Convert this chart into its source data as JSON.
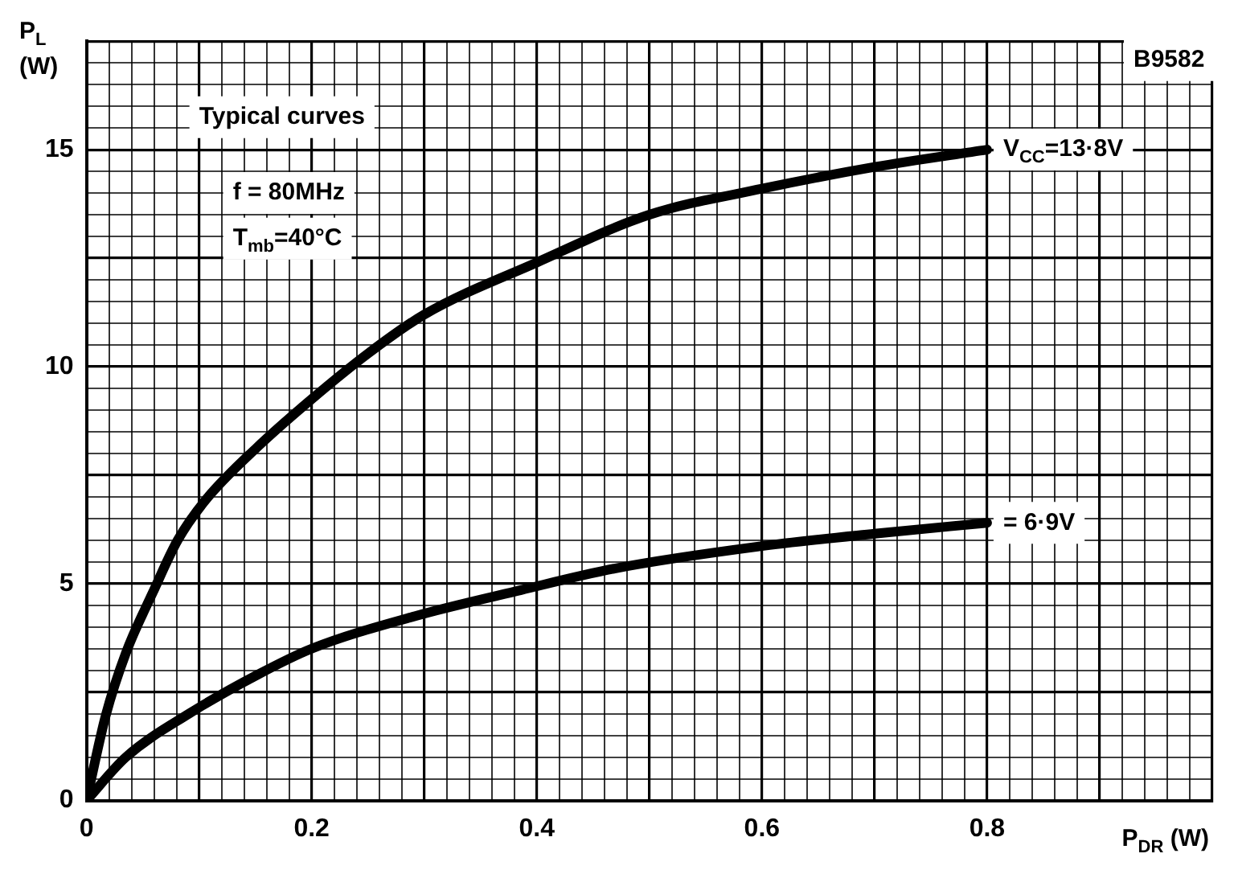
{
  "chart_data": {
    "type": "line",
    "xlabel": "P$_{DR}$ (W)",
    "ylabel": "P$_{L}$ (W)",
    "annotations": [
      "Typical curves",
      "f = 80MHz",
      "T$_{mb}$=40°C",
      "B9582"
    ],
    "series": [
      {
        "name": "V$_{CC}$=13·8V",
        "color": "#000000",
        "x": [
          0,
          0.017,
          0.035,
          0.059,
          0.081,
          0.105,
          0.152,
          0.2,
          0.25,
          0.3,
          0.4,
          0.5,
          0.6,
          0.7,
          0.8
        ],
        "values": [
          0,
          1.95,
          3.4,
          4.8,
          6.0,
          6.9,
          8.15,
          9.25,
          10.3,
          11.2,
          12.4,
          13.5,
          14.1,
          14.6,
          15.0
        ]
      },
      {
        "name": "= 6·9V",
        "color": "#000000",
        "x": [
          0,
          0.035,
          0.091,
          0.152,
          0.2,
          0.292,
          0.386,
          0.47,
          0.596,
          0.7,
          0.8
        ],
        "values": [
          0,
          1.0,
          2.0,
          2.9,
          3.5,
          4.25,
          4.85,
          5.35,
          5.85,
          6.15,
          6.4
        ]
      }
    ],
    "xlim": [
      0,
      1.0
    ],
    "ylim": [
      0,
      17.5
    ],
    "xticks": [
      0,
      {
        "value": 0.02,
        "label": null
      },
      {
        "value": 0.04,
        "label": null
      },
      {
        "value": 0.06,
        "label": null
      },
      {
        "value": 0.08,
        "label": null
      },
      {
        "value": 0.1,
        "label": null
      },
      {
        "value": 0.12,
        "label": null
      },
      {
        "value": 0.14,
        "label": null
      },
      {
        "value": 0.16,
        "label": null
      },
      {
        "value": 0.18,
        "label": null
      },
      0.2,
      {
        "value": 0.22,
        "label": null
      },
      {
        "value": 0.24,
        "label": null
      },
      {
        "value": 0.26,
        "label": null
      },
      {
        "value": 0.28,
        "label": null
      },
      {
        "value": 0.3,
        "label": null
      },
      {
        "value": 0.32,
        "label": null
      },
      {
        "value": 0.34,
        "label": null
      },
      {
        "value": 0.36,
        "label": null
      },
      {
        "value": 0.38,
        "label": null
      },
      0.4,
      {
        "value": 0.42,
        "label": null
      },
      {
        "value": 0.44,
        "label": null
      },
      {
        "value": 0.46,
        "label": null
      },
      {
        "value": 0.48,
        "label": null
      },
      {
        "value": 0.5,
        "label": null
      },
      {
        "value": 0.52,
        "label": null
      },
      {
        "value": 0.54,
        "label": null
      },
      {
        "value": 0.56,
        "label": null
      },
      {
        "value": 0.58,
        "label": null
      },
      0.6,
      {
        "value": 0.62,
        "label": null
      },
      {
        "value": 0.64,
        "label": null
      },
      {
        "value": 0.66,
        "label": null
      },
      {
        "value": 0.68,
        "label": null
      },
      {
        "value": 0.7,
        "label": null
      },
      {
        "value": 0.72,
        "label": null
      },
      {
        "value": 0.74,
        "label": null
      },
      {
        "value": 0.76,
        "label": null
      },
      {
        "value": 0.78,
        "label": null
      },
      0.8,
      {
        "value": 0.82,
        "label": null
      },
      {
        "value": 0.84,
        "label": null
      },
      {
        "value": 0.86,
        "label": null
      },
      {
        "value": 0.88,
        "label": null
      },
      {
        "value": 0.9,
        "label": null
      },
      {
        "value": 0.92,
        "label": null
      },
      {
        "value": 0.94,
        "label": null
      },
      {
        "value": 0.96,
        "label": null
      },
      {
        "value": 0.98,
        "label": null
      },
      {
        "value": 1.0,
        "label": null
      }
    ],
    "yticks": [
      0,
      {
        "value": 0.5,
        "label": null
      },
      {
        "value": 1,
        "label": null
      },
      {
        "value": 1.5,
        "label": null
      },
      {
        "value": 2,
        "label": null
      },
      {
        "value": 2.5,
        "label": null
      },
      {
        "value": 3,
        "label": null
      },
      {
        "value": 3.5,
        "label": null
      },
      {
        "value": 4,
        "label": null
      },
      {
        "value": 4.5,
        "label": null
      },
      5,
      {
        "value": 5.5,
        "label": null
      },
      {
        "value": 6,
        "label": null
      },
      {
        "value": 6.5,
        "label": null
      },
      {
        "value": 7,
        "label": null
      },
      {
        "value": 7.5,
        "label": null
      },
      {
        "value": 8,
        "label": null
      },
      {
        "value": 8.5,
        "label": null
      },
      {
        "value": 9,
        "label": null
      },
      {
        "value": 9.5,
        "label": null
      },
      10,
      {
        "value": 10.5,
        "label": null
      },
      {
        "value": 11,
        "label": null
      },
      {
        "value": 11.5,
        "label": null
      },
      {
        "value": 12,
        "label": null
      },
      {
        "value": 12.5,
        "label": null
      },
      {
        "value": 13,
        "label": null
      },
      {
        "value": 13.5,
        "label": null
      },
      {
        "value": 14,
        "label": null
      },
      {
        "value": 14.5,
        "label": null
      },
      15,
      {
        "value": 15.5,
        "label": null
      },
      {
        "value": 16,
        "label": null
      },
      {
        "value": 16.5,
        "label": null
      },
      {
        "value": 17,
        "label": null
      },
      {
        "value": 17.5,
        "label": null
      }
    ],
    "grid": true,
    "legend": false,
    "marker": "none",
    "line_style": "solid"
  }
}
